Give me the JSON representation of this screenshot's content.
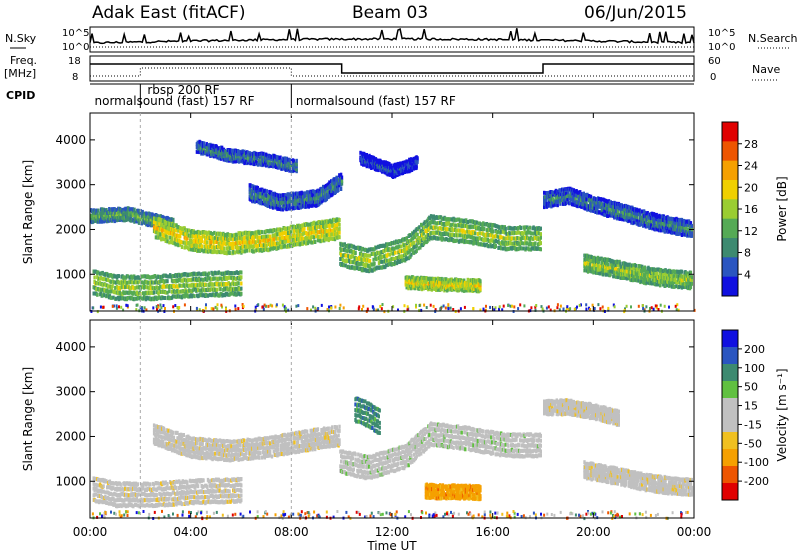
{
  "header": {
    "radar": "Adak East (fitACF)",
    "beam": "Beam 03",
    "date": "06/Jun/2015"
  },
  "side_labels": {
    "nsky": "N.Sky",
    "freq": "Freq.",
    "freq_unit": "[MHz]",
    "cpid": "CPID",
    "nsearch": "N.Search",
    "nave": "Nave"
  },
  "axis_labels": {
    "sky_left_top": "10^5",
    "sky_left_bottom": "10^0",
    "sky_right_top": "10^5",
    "sky_right_bottom": "10^0",
    "freq_left_top": "18",
    "freq_left_bottom": "8",
    "nave_right_top": "60",
    "nave_right_bottom": "0"
  },
  "cpid_labels": [
    {
      "text": "rbsp 200 RF",
      "at_hour": 2.2,
      "row": 0
    },
    {
      "text": "normalsound (fast) 157 RF",
      "at_hour": 0.1,
      "row": 1
    },
    {
      "text": "normalsound (fast) 157 RF",
      "at_hour": 8.1,
      "row": 1
    }
  ],
  "colors": {
    "power_scale": [
      "#1010e0",
      "#2a55c0",
      "#3d8a70",
      "#55aa55",
      "#9acd32",
      "#f0d000",
      "#f5a000",
      "#ee5500",
      "#e00000"
    ],
    "velocity_scale": [
      "#e00000",
      "#ee5500",
      "#f5a000",
      "#f0c020",
      "#c0c0c0",
      "#c0c0c0",
      "#60c040",
      "#3d8a70",
      "#2a55c0",
      "#1010e0"
    ]
  },
  "chart_data": [
    {
      "type": "heatmap",
      "name_in_image": "Power",
      "colorbar_label": "Power [dB]",
      "colorbar_ticks": [
        "4",
        "8",
        "12",
        "16",
        "20",
        "24",
        "28"
      ],
      "xlabel": "Time UT",
      "ylabel": "Slant Range [km]",
      "xticks": [
        "00:00",
        "04:00",
        "08:00",
        "12:00",
        "16:00",
        "20:00",
        "00:00"
      ],
      "yticks": [
        "1000",
        "2000",
        "3000",
        "4000"
      ],
      "xlim": [
        0,
        24
      ],
      "ylim": [
        180,
        4600
      ],
      "bands": [
        {
          "x": [
            0.0,
            0.7,
            1.5,
            2.5,
            3.3
          ],
          "y": [
            2300,
            2320,
            2340,
            2200,
            2080
          ],
          "width": 120,
          "level": 3
        },
        {
          "x": [
            2.5,
            4.0,
            5.5,
            7.0,
            8.5,
            9.9
          ],
          "y": [
            2050,
            1750,
            1680,
            1750,
            1900,
            2020
          ],
          "width": 200,
          "level": 5
        },
        {
          "x": [
            9.9,
            11.0,
            12.5,
            13.5,
            15.0,
            16.5,
            17.9
          ],
          "y": [
            1450,
            1300,
            1550,
            2050,
            1950,
            1800,
            1800
          ],
          "width": 230,
          "level": 4
        },
        {
          "x": [
            0.1,
            1.0,
            2.5,
            4.0,
            5.0,
            6.0
          ],
          "y": [
            820,
            700,
            700,
            760,
            780,
            800
          ],
          "width": 240,
          "level": 4
        },
        {
          "x": [
            6.3,
            7.5,
            9.0,
            10.0
          ],
          "y": [
            2820,
            2600,
            2700,
            3100
          ],
          "width": 150,
          "level": 2
        },
        {
          "x": [
            4.2,
            5.5,
            7.0,
            8.2
          ],
          "y": [
            3850,
            3650,
            3550,
            3400
          ],
          "width": 110,
          "level": 2
        },
        {
          "x": [
            10.7,
            12.0,
            13.0
          ],
          "y": [
            3600,
            3300,
            3500
          ],
          "width": 110,
          "level": 1
        },
        {
          "x": [
            12.5,
            13.5,
            14.5,
            15.5
          ],
          "y": [
            820,
            780,
            760,
            740
          ],
          "width": 110,
          "level": 5
        },
        {
          "x": [
            18.0,
            19.0,
            20.0,
            21.0,
            22.5,
            23.9
          ],
          "y": [
            2650,
            2750,
            2550,
            2400,
            2150,
            2000
          ],
          "width": 150,
          "level": 2
        },
        {
          "x": [
            19.6,
            21.0,
            22.0,
            23.0,
            23.9
          ],
          "y": [
            1250,
            1100,
            980,
            900,
            860
          ],
          "width": 160,
          "level": 4
        }
      ]
    },
    {
      "type": "heatmap",
      "name_in_image": "Velocity",
      "colorbar_label": "Velocity [m s⁻¹]",
      "colorbar_ticks": [
        "-200",
        "-100",
        "-50",
        "-15",
        "15",
        "50",
        "100",
        "200"
      ],
      "xlabel": "Time UT",
      "ylabel": "Slant Range [km]",
      "xticks": [
        "00:00",
        "04:00",
        "08:00",
        "12:00",
        "16:00",
        "20:00",
        "00:00"
      ],
      "yticks": [
        "1000",
        "2000",
        "3000",
        "4000"
      ],
      "xlim": [
        0,
        24
      ],
      "ylim": [
        180,
        4600
      ],
      "bands": [
        {
          "x": [
            2.5,
            4.0,
            5.5,
            7.0,
            8.5,
            9.9
          ],
          "y": [
            2050,
            1750,
            1680,
            1750,
            1900,
            2020
          ],
          "width": 200,
          "level": 4
        },
        {
          "x": [
            9.9,
            11.0,
            12.5,
            13.5,
            15.0,
            16.5,
            17.9
          ],
          "y": [
            1450,
            1300,
            1550,
            2050,
            1950,
            1800,
            1800
          ],
          "width": 230,
          "level": 5
        },
        {
          "x": [
            0.1,
            1.0,
            2.5,
            4.0,
            5.0,
            6.0
          ],
          "y": [
            820,
            700,
            700,
            760,
            780,
            800
          ],
          "width": 240,
          "level": 4
        },
        {
          "x": [
            13.3,
            14.0,
            15.0,
            15.5
          ],
          "y": [
            780,
            760,
            760,
            740
          ],
          "width": 130,
          "level": 2
        },
        {
          "x": [
            10.5,
            11.0,
            11.5
          ],
          "y": [
            2600,
            2500,
            2300
          ],
          "width": 250,
          "level": 7
        },
        {
          "x": [
            19.6,
            21.0,
            22.0,
            23.0,
            23.9
          ],
          "y": [
            1250,
            1100,
            980,
            900,
            860
          ],
          "width": 160,
          "level": 4
        },
        {
          "x": [
            18.0,
            19.0,
            20.0,
            21.0
          ],
          "y": [
            2650,
            2650,
            2550,
            2400
          ],
          "width": 140,
          "level": 4
        }
      ]
    }
  ]
}
